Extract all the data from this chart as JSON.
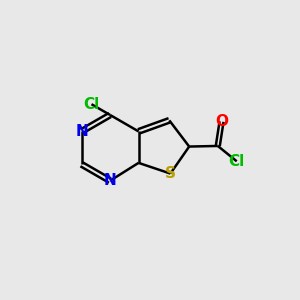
{
  "bg_color": "#e8e8e8",
  "bond_color": "#000000",
  "bond_width": 1.8,
  "atom_colors": {
    "N": "#0000ee",
    "S": "#b8a000",
    "Cl_ring": "#00bb00",
    "Cl_acyl": "#00bb00",
    "O": "#ff0000",
    "C": "#000000"
  },
  "font_size": 11
}
